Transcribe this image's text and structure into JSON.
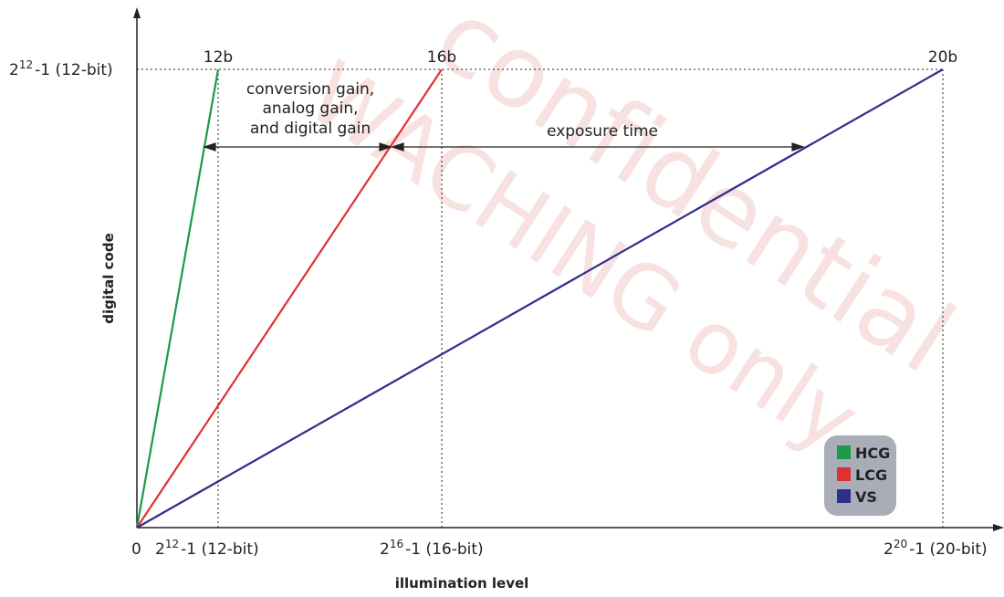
{
  "axes": {
    "y_label": "digital code",
    "x_label": "illumination level"
  },
  "ticks": {
    "origin": "0",
    "x_12_base": "2",
    "x_12_exp": "12",
    "x_12_rest": "-1 (12-bit)",
    "x_16_base": "2",
    "x_16_exp": "16",
    "x_16_rest": "-1 (16-bit)",
    "x_20_base": "2",
    "x_20_exp": "20",
    "x_20_rest": "-1 (20-bit)",
    "y_12_base": "2",
    "y_12_exp": "12",
    "y_12_rest": "-1 (12-bit)"
  },
  "line_labels": {
    "hcg_end": "12b",
    "lcg_end": "16b",
    "vs_end": "20b"
  },
  "annotations": {
    "gain_line1": "conversion gain,",
    "gain_line2": "analog gain,",
    "gain_line3": "and digital gain",
    "exposure": "exposure time"
  },
  "legend": {
    "items": [
      {
        "label": "HCG",
        "color": "#1a9a4a"
      },
      {
        "label": "LCG",
        "color": "#e03030"
      },
      {
        "label": "VS",
        "color": "#2e2e8c"
      }
    ]
  },
  "watermark": {
    "line1": "confidential",
    "line2": "WACHING only"
  },
  "colors": {
    "hcg": "#1a9a4a",
    "lcg": "#e03030",
    "vs": "#2e2e8c",
    "legend_bg": "#a9adb8"
  }
}
